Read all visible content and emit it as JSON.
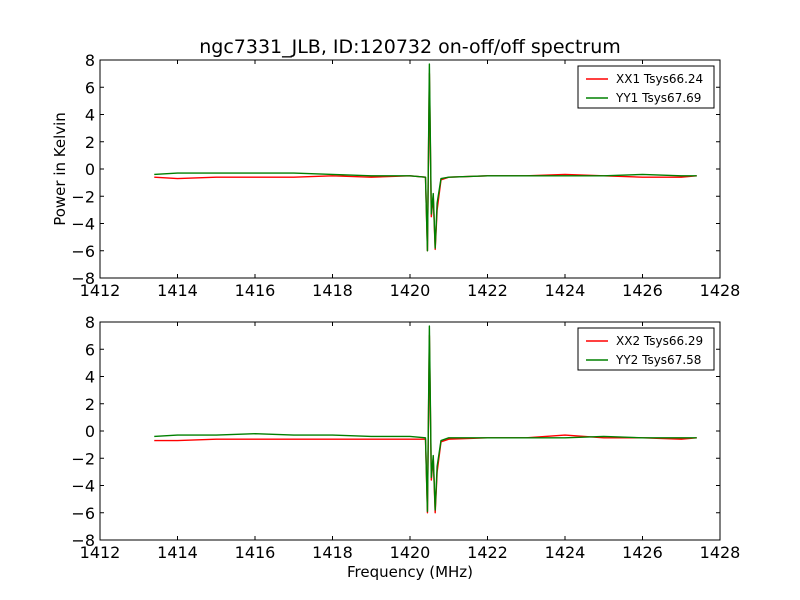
{
  "figure": {
    "title": "ngc7331_JLB, ID:120732 on-off/off spectrum",
    "xlabel": "Frequency (MHz)",
    "ylabel": "Power in Kelvin"
  },
  "chart_data": [
    {
      "type": "line",
      "title": "ngc7331_JLB, ID:120732 on-off/off spectrum",
      "xlabel": "",
      "ylabel": "Power in Kelvin",
      "xlim": [
        1412,
        1428
      ],
      "ylim": [
        -8,
        8
      ],
      "xticks": [
        1412,
        1414,
        1416,
        1418,
        1420,
        1422,
        1424,
        1426,
        1428
      ],
      "yticks": [
        -8,
        -6,
        -4,
        -2,
        0,
        2,
        4,
        6,
        8
      ],
      "grid": false,
      "legend_position": "top-right",
      "series": [
        {
          "name": "XX1 Tsys66.24",
          "color": "#ff0000",
          "x": [
            1413.4,
            1414.0,
            1415.0,
            1416.0,
            1417.0,
            1418.0,
            1419.0,
            1420.0,
            1420.4,
            1420.45,
            1420.5,
            1420.55,
            1420.6,
            1420.65,
            1420.7,
            1420.8,
            1421.0,
            1422.0,
            1423.0,
            1424.0,
            1425.0,
            1426.0,
            1427.0,
            1427.4
          ],
          "y": [
            -0.6,
            -0.7,
            -0.6,
            -0.6,
            -0.6,
            -0.5,
            -0.6,
            -0.5,
            -0.6,
            -6.0,
            7.0,
            -3.5,
            -2.0,
            -5.9,
            -3.0,
            -0.8,
            -0.6,
            -0.5,
            -0.5,
            -0.4,
            -0.5,
            -0.6,
            -0.6,
            -0.5
          ]
        },
        {
          "name": "YY1 Tsys67.69",
          "color": "#008000",
          "x": [
            1413.4,
            1414.0,
            1415.0,
            1416.0,
            1417.0,
            1418.0,
            1419.0,
            1420.0,
            1420.4,
            1420.45,
            1420.5,
            1420.55,
            1420.6,
            1420.65,
            1420.7,
            1420.8,
            1421.0,
            1422.0,
            1423.0,
            1424.0,
            1425.0,
            1426.0,
            1427.0,
            1427.4
          ],
          "y": [
            -0.4,
            -0.3,
            -0.3,
            -0.3,
            -0.3,
            -0.4,
            -0.5,
            -0.5,
            -0.6,
            -6.0,
            7.7,
            -3.3,
            -1.8,
            -5.8,
            -2.5,
            -0.7,
            -0.6,
            -0.5,
            -0.5,
            -0.5,
            -0.5,
            -0.4,
            -0.5,
            -0.5
          ]
        }
      ]
    },
    {
      "type": "line",
      "title": "",
      "xlabel": "Frequency (MHz)",
      "ylabel": "",
      "xlim": [
        1412,
        1428
      ],
      "ylim": [
        -8,
        8
      ],
      "xticks": [
        1412,
        1414,
        1416,
        1418,
        1420,
        1422,
        1424,
        1426,
        1428
      ],
      "yticks": [
        -8,
        -6,
        -4,
        -2,
        0,
        2,
        4,
        6,
        8
      ],
      "grid": false,
      "legend_position": "top-right",
      "series": [
        {
          "name": "XX2 Tsys66.29",
          "color": "#ff0000",
          "x": [
            1413.4,
            1414.0,
            1415.0,
            1416.0,
            1417.0,
            1418.0,
            1419.0,
            1420.0,
            1420.4,
            1420.45,
            1420.5,
            1420.55,
            1420.6,
            1420.65,
            1420.7,
            1420.8,
            1421.0,
            1422.0,
            1423.0,
            1424.0,
            1425.0,
            1426.0,
            1427.0,
            1427.4
          ],
          "y": [
            -0.7,
            -0.7,
            -0.6,
            -0.6,
            -0.6,
            -0.6,
            -0.6,
            -0.6,
            -0.6,
            -6.0,
            7.0,
            -3.6,
            -2.0,
            -6.0,
            -3.0,
            -0.8,
            -0.6,
            -0.5,
            -0.5,
            -0.3,
            -0.5,
            -0.5,
            -0.6,
            -0.5
          ]
        },
        {
          "name": "YY2 Tsys67.58",
          "color": "#008000",
          "x": [
            1413.4,
            1414.0,
            1415.0,
            1416.0,
            1417.0,
            1418.0,
            1419.0,
            1420.0,
            1420.4,
            1420.45,
            1420.5,
            1420.55,
            1420.6,
            1420.65,
            1420.7,
            1420.8,
            1421.0,
            1422.0,
            1423.0,
            1424.0,
            1425.0,
            1426.0,
            1427.0,
            1427.4
          ],
          "y": [
            -0.4,
            -0.3,
            -0.3,
            -0.2,
            -0.3,
            -0.3,
            -0.4,
            -0.4,
            -0.5,
            -5.9,
            7.7,
            -3.4,
            -1.8,
            -5.8,
            -2.6,
            -0.7,
            -0.5,
            -0.5,
            -0.5,
            -0.5,
            -0.4,
            -0.5,
            -0.5,
            -0.5
          ]
        }
      ]
    }
  ]
}
